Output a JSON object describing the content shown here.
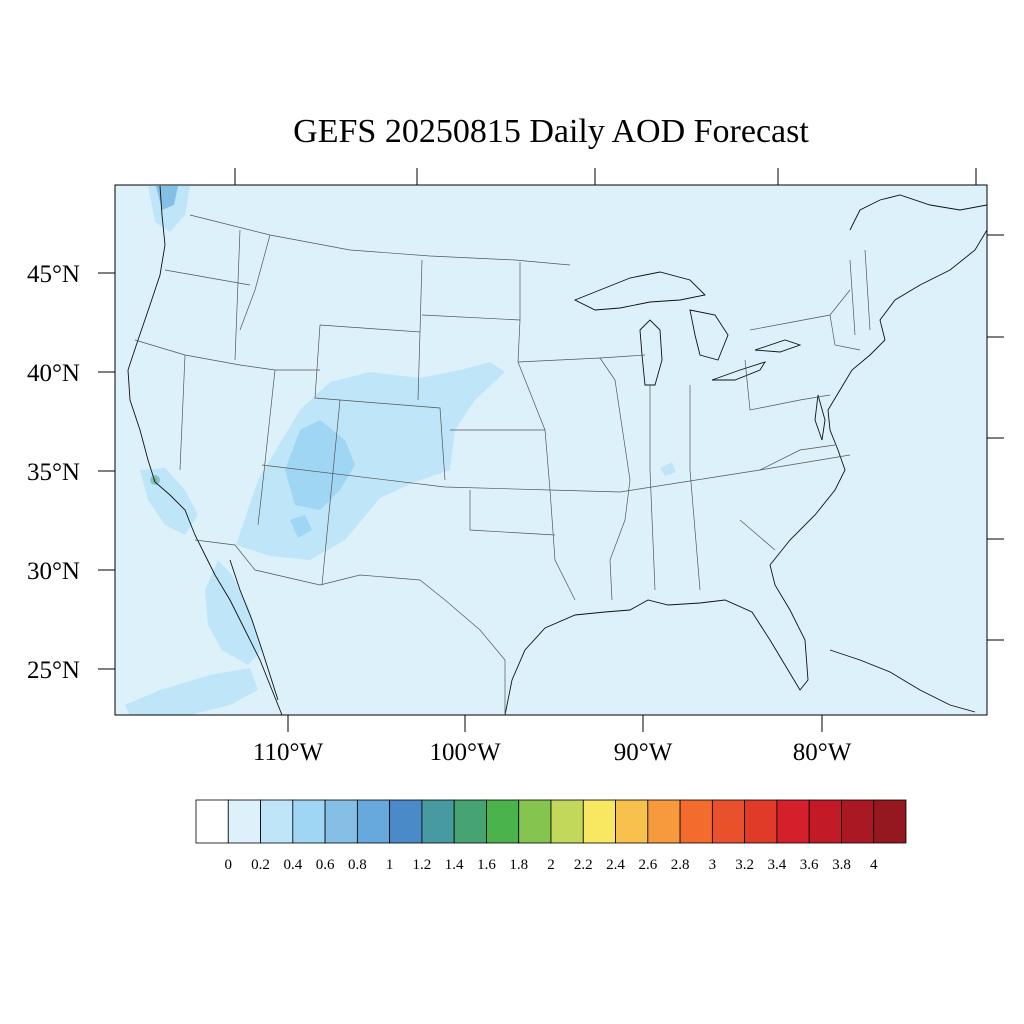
{
  "title": "GEFS 20250815 Daily AOD Forecast",
  "lat_labels": [
    "45°N",
    "40°N",
    "35°N",
    "30°N",
    "25°N"
  ],
  "lon_labels": [
    "110°W",
    "100°W",
    "90°W",
    "80°W"
  ],
  "colorbar": {
    "labels": [
      "0",
      "0.2",
      "0.4",
      "0.6",
      "0.8",
      "1",
      "1.2",
      "1.4",
      "1.6",
      "1.8",
      "2",
      "2.2",
      "2.4",
      "2.6",
      "2.8",
      "3",
      "3.2",
      "3.4",
      "3.6",
      "3.8",
      "4"
    ],
    "colors": [
      "#ffffff",
      "#ddf1fb",
      "#bee5f8",
      "#9fd6f3",
      "#85bfe6",
      "#68a9dd",
      "#4a8ac9",
      "#479a9f",
      "#46a474",
      "#4ab34b",
      "#85c44e",
      "#c2d85a",
      "#f8e760",
      "#f8c14d",
      "#f79a3e",
      "#f36b2d",
      "#e9512c",
      "#e03a29",
      "#d51f2a",
      "#c21a27",
      "#aa1823",
      "#951720"
    ]
  },
  "map_background": "#ddf1fb",
  "plume_colors": {
    "light": "#bee5f8",
    "medium": "#9fd6f3",
    "dark": "#85bfe6",
    "hotspot": "#85c44e"
  }
}
